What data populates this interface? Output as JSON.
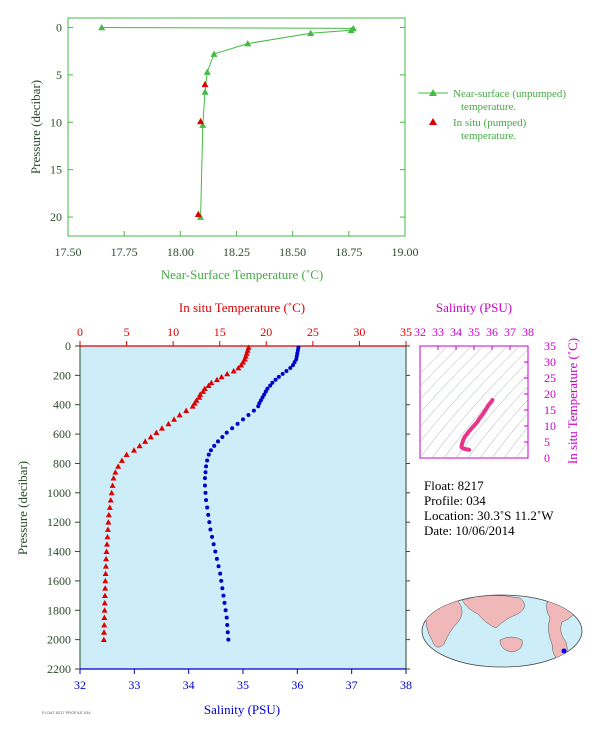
{
  "chart_data": [
    {
      "type": "line",
      "xlabel": "Near-Surface Temperature (˚C)",
      "ylabel": "Pressure (decibar)",
      "xlim": [
        17.5,
        19.0
      ],
      "ylim": [
        22,
        -1
      ],
      "xticks": [
        "17.50",
        "17.75",
        "18.00",
        "18.25",
        "18.50",
        "18.75",
        "19.00"
      ],
      "yticks": [
        "0",
        "5",
        "10",
        "15",
        "20"
      ],
      "grid": false,
      "legend": "right",
      "series": [
        {
          "name": "Near-surface (unpumped) temperature.",
          "color": "#44bb44",
          "marker": "triangle",
          "x": [
            17.65,
            18.77,
            18.76,
            18.58,
            18.3,
            18.15,
            18.12,
            18.11,
            18.1,
            18.09
          ],
          "y": [
            0.0,
            0.1,
            0.3,
            0.6,
            1.7,
            2.8,
            4.7,
            6.8,
            10.3,
            20.0
          ]
        },
        {
          "name": "In situ (pumped) temperature.",
          "color": "#dd0000",
          "marker": "triangle",
          "x": [
            18.11,
            18.09,
            18.08
          ],
          "y": [
            6.0,
            9.9,
            19.7
          ]
        }
      ]
    },
    {
      "type": "scatter",
      "ylabel": "Pressure (decibar)",
      "top_label": "In situ Temperature (˚C)",
      "bottom_label": "Salinity (PSU)",
      "top_xlim": [
        0,
        35
      ],
      "bottom_xlim": [
        32,
        38
      ],
      "ylim": [
        2200,
        0
      ],
      "top_ticks": [
        "0",
        "5",
        "10",
        "15",
        "20",
        "25",
        "30",
        "35"
      ],
      "bottom_ticks": [
        "32",
        "33",
        "34",
        "35",
        "36",
        "37",
        "38"
      ],
      "yticks": [
        "0",
        "200",
        "400",
        "600",
        "800",
        "1000",
        "1200",
        "1400",
        "1600",
        "1800",
        "2000",
        "2200"
      ],
      "series": [
        {
          "name": "In situ Temperature",
          "color": "#dd0000",
          "marker": "triangle",
          "p": [
            10,
            30,
            50,
            70,
            90,
            110,
            130,
            150,
            170,
            190,
            210,
            230,
            250,
            270,
            290,
            310,
            330,
            350,
            370,
            390,
            410,
            440,
            470,
            500,
            530,
            560,
            590,
            620,
            650,
            680,
            710,
            740,
            780,
            820,
            860,
            900,
            950,
            1000,
            1050,
            1100,
            1150,
            1200,
            1250,
            1300,
            1350,
            1400,
            1450,
            1500,
            1550,
            1600,
            1650,
            1700,
            1750,
            1800,
            1850,
            1900,
            1950,
            2000
          ],
          "t": [
            18.1,
            18.0,
            17.9,
            17.8,
            17.7,
            17.5,
            17.3,
            17.0,
            16.5,
            15.8,
            15.2,
            14.7,
            14.1,
            13.8,
            13.4,
            13.2,
            12.9,
            12.8,
            12.5,
            12.3,
            12.1,
            11.4,
            10.7,
            10.1,
            9.5,
            8.8,
            8.2,
            7.6,
            7.0,
            6.4,
            5.8,
            5.0,
            4.5,
            4.1,
            3.8,
            3.6,
            3.5,
            3.4,
            3.3,
            3.2,
            3.1,
            3.05,
            3.0,
            2.95,
            2.9,
            2.85,
            2.8,
            2.78,
            2.75,
            2.72,
            2.7,
            2.68,
            2.66,
            2.64,
            2.62,
            2.6,
            2.58,
            2.56
          ]
        },
        {
          "name": "Salinity",
          "color": "#0000cc",
          "marker": "circle",
          "p": [
            10,
            30,
            50,
            70,
            90,
            110,
            130,
            150,
            170,
            190,
            210,
            230,
            250,
            270,
            290,
            310,
            330,
            350,
            370,
            390,
            410,
            440,
            470,
            500,
            530,
            560,
            590,
            620,
            650,
            680,
            710,
            740,
            780,
            820,
            860,
            900,
            950,
            1000,
            1050,
            1100,
            1150,
            1200,
            1250,
            1300,
            1350,
            1400,
            1450,
            1500,
            1550,
            1600,
            1650,
            1700,
            1750,
            1800,
            1850,
            1900,
            1950,
            2000
          ],
          "s": [
            36.02,
            36.01,
            36.0,
            35.99,
            35.98,
            35.95,
            35.92,
            35.87,
            35.8,
            35.73,
            35.66,
            35.6,
            35.54,
            35.5,
            35.45,
            35.42,
            35.39,
            35.36,
            35.33,
            35.3,
            35.28,
            35.2,
            35.1,
            35.0,
            34.9,
            34.8,
            34.7,
            34.62,
            34.54,
            34.47,
            34.41,
            34.37,
            34.34,
            34.32,
            34.31,
            34.3,
            34.3,
            34.31,
            34.32,
            34.34,
            34.36,
            34.38,
            34.4,
            34.43,
            34.46,
            34.49,
            34.52,
            34.55,
            34.58,
            34.6,
            34.62,
            34.64,
            34.66,
            34.68,
            34.7,
            34.71,
            34.72,
            34.73
          ]
        }
      ]
    },
    {
      "type": "line",
      "title": "Salinity (PSU)",
      "ylabel": "In situ Temperature (˚C)",
      "xlim": [
        32,
        38
      ],
      "ylim": [
        0,
        35
      ],
      "xticks": [
        "32",
        "33",
        "34",
        "35",
        "36",
        "37",
        "38"
      ],
      "yticks": [
        "0",
        "5",
        "10",
        "15",
        "20",
        "25",
        "30",
        "35"
      ],
      "color": "#e8348a"
    }
  ],
  "info": {
    "float": "Float:  8217",
    "profile": "Profile:  034",
    "location": "Location:  30.3˚S  11.2˚W",
    "date": "Date:  10/06/2014"
  },
  "colors": {
    "top_axis_text": "#44aa44",
    "pressure_axis": "#2d4a2d",
    "temperature": "#dd0000",
    "salinity": "#0000cc",
    "ts_magenta": "#cc00cc",
    "plot_bg": "#cdeef8"
  }
}
